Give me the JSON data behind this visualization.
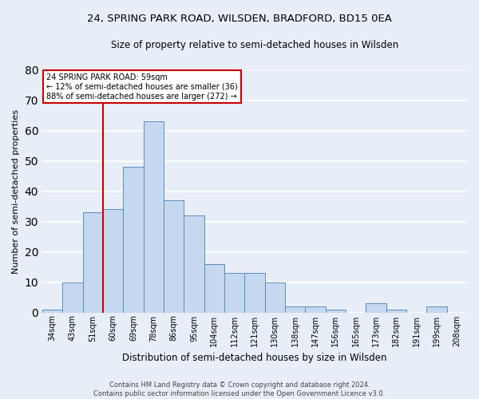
{
  "title1": "24, SPRING PARK ROAD, WILSDEN, BRADFORD, BD15 0EA",
  "title2": "Size of property relative to semi-detached houses in Wilsden",
  "xlabel": "Distribution of semi-detached houses by size in Wilsden",
  "ylabel": "Number of semi-detached properties",
  "categories": [
    "34sqm",
    "43sqm",
    "51sqm",
    "60sqm",
    "69sqm",
    "78sqm",
    "86sqm",
    "95sqm",
    "104sqm",
    "112sqm",
    "121sqm",
    "130sqm",
    "138sqm",
    "147sqm",
    "156sqm",
    "165sqm",
    "173sqm",
    "182sqm",
    "191sqm",
    "199sqm",
    "208sqm"
  ],
  "values": [
    1,
    10,
    33,
    34,
    48,
    63,
    37,
    32,
    16,
    13,
    13,
    10,
    2,
    2,
    1,
    0,
    3,
    1,
    0,
    2,
    0
  ],
  "bar_color": "#c5d8f0",
  "bar_edge_color": "#5b8db8",
  "bg_color": "#e8eef8",
  "grid_color": "#ffffff",
  "vline_color": "#cc0000",
  "annotation_title": "24 SPRING PARK ROAD: 59sqm",
  "annotation_line1": "← 12% of semi-detached houses are smaller (36)",
  "annotation_line2": "88% of semi-detached houses are larger (272) →",
  "annotation_box_color": "#ffffff",
  "annotation_box_edge": "#cc0000",
  "footnote1": "Contains HM Land Registry data © Crown copyright and database right 2024.",
  "footnote2": "Contains public sector information licensed under the Open Government Licence v3.0.",
  "ylim": [
    0,
    80
  ],
  "yticks": [
    0,
    10,
    20,
    30,
    40,
    50,
    60,
    70,
    80
  ],
  "title1_fontsize": 9.5,
  "title2_fontsize": 8.5,
  "ylabel_fontsize": 8,
  "xlabel_fontsize": 8.5,
  "tick_fontsize": 7,
  "annot_fontsize": 7,
  "footnote_fontsize": 6
}
